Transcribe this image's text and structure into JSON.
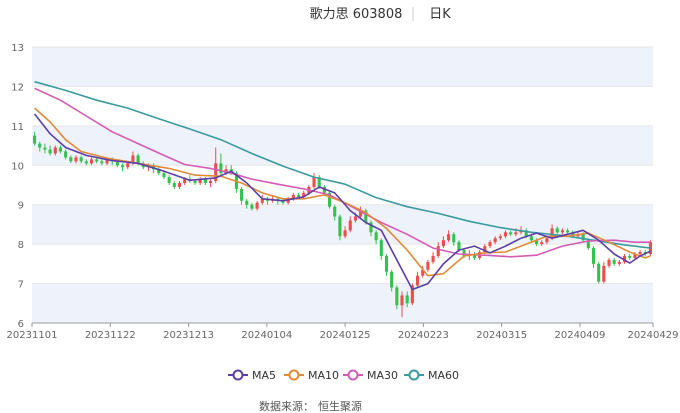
{
  "header": {
    "stock_name_code": "歌力思 603808",
    "period": "日K"
  },
  "source": {
    "label": "数据来源：",
    "provider": "恒生聚源"
  },
  "colors": {
    "up": "#ee4d4d",
    "down": "#34c24c",
    "band": "#eef2fb",
    "grid": "#e6e6e6",
    "ma5": "#5b3fa6",
    "ma10": "#e08a3a",
    "ma30": "#d45bb5",
    "ma60": "#3b9aa0"
  },
  "chart_data": {
    "type": "candlestick",
    "ylim": [
      6,
      13
    ],
    "yticks": [
      6,
      7,
      8,
      9,
      10,
      11,
      12,
      13
    ],
    "x_tick_labels": [
      "20231101",
      "20231122",
      "20231213",
      "20240104",
      "20240125",
      "20240223",
      "20240315",
      "20240409",
      "20240429"
    ],
    "x_tick_index": [
      0,
      15,
      30,
      45,
      60,
      75,
      90,
      105,
      119
    ],
    "n_days": 120,
    "legend": [
      "MA5",
      "MA10",
      "MA30",
      "MA60"
    ],
    "candles": [
      [
        10.75,
        10.55,
        10.85,
        10.5
      ],
      [
        10.55,
        10.45,
        10.6,
        10.35
      ],
      [
        10.45,
        10.4,
        10.55,
        10.3
      ],
      [
        10.4,
        10.3,
        10.5,
        10.25
      ],
      [
        10.3,
        10.45,
        10.5,
        10.25
      ],
      [
        10.45,
        10.35,
        10.5,
        10.3
      ],
      [
        10.35,
        10.2,
        10.4,
        10.15
      ],
      [
        10.2,
        10.1,
        10.25,
        10.05
      ],
      [
        10.1,
        10.2,
        10.25,
        10.05
      ],
      [
        10.2,
        10.1,
        10.25,
        10.05
      ],
      [
        10.1,
        10.05,
        10.15,
        10.0
      ],
      [
        10.05,
        10.15,
        10.2,
        10.0
      ],
      [
        10.15,
        10.1,
        10.2,
        10.05
      ],
      [
        10.1,
        10.05,
        10.15,
        10.0
      ],
      [
        10.05,
        10.15,
        10.2,
        10.0
      ],
      [
        10.15,
        10.1,
        10.2,
        10.0
      ],
      [
        10.1,
        10.0,
        10.15,
        9.95
      ],
      [
        10.0,
        9.95,
        10.05,
        9.85
      ],
      [
        9.95,
        10.05,
        10.1,
        9.9
      ],
      [
        10.05,
        10.25,
        10.35,
        10.0
      ],
      [
        10.25,
        10.05,
        10.3,
        10.0
      ],
      [
        10.05,
        9.95,
        10.1,
        9.9
      ],
      [
        9.95,
        10.0,
        10.05,
        9.85
      ],
      [
        10.0,
        9.9,
        10.05,
        9.8
      ],
      [
        9.9,
        9.8,
        9.95,
        9.75
      ],
      [
        9.8,
        9.7,
        9.85,
        9.65
      ],
      [
        9.7,
        9.55,
        9.75,
        9.5
      ],
      [
        9.55,
        9.45,
        9.6,
        9.4
      ],
      [
        9.45,
        9.55,
        9.6,
        9.4
      ],
      [
        9.55,
        9.65,
        9.7,
        9.5
      ],
      [
        9.65,
        9.6,
        9.75,
        9.55
      ],
      [
        9.6,
        9.55,
        9.65,
        9.5
      ],
      [
        9.55,
        9.65,
        9.7,
        9.5
      ],
      [
        9.65,
        9.55,
        9.7,
        9.5
      ],
      [
        9.55,
        9.6,
        9.65,
        9.45
      ],
      [
        9.6,
        10.05,
        10.45,
        9.55
      ],
      [
        10.05,
        9.8,
        10.3,
        9.7
      ],
      [
        9.8,
        9.9,
        10.0,
        9.75
      ],
      [
        9.9,
        9.8,
        10.0,
        9.75
      ],
      [
        9.8,
        9.4,
        9.85,
        9.3
      ],
      [
        9.4,
        9.1,
        9.45,
        9.0
      ],
      [
        9.1,
        9.0,
        9.15,
        8.9
      ],
      [
        9.0,
        8.9,
        9.05,
        8.85
      ],
      [
        8.9,
        9.05,
        9.1,
        8.85
      ],
      [
        9.05,
        9.15,
        9.25,
        9.0
      ],
      [
        9.15,
        9.1,
        9.2,
        9.0
      ],
      [
        9.1,
        9.15,
        9.25,
        9.05
      ],
      [
        9.15,
        9.1,
        9.2,
        9.0
      ],
      [
        9.1,
        9.05,
        9.15,
        9.0
      ],
      [
        9.05,
        9.15,
        9.2,
        9.0
      ],
      [
        9.15,
        9.25,
        9.3,
        9.1
      ],
      [
        9.25,
        9.2,
        9.3,
        9.15
      ],
      [
        9.2,
        9.3,
        9.35,
        9.15
      ],
      [
        9.3,
        9.45,
        9.5,
        9.25
      ],
      [
        9.45,
        9.7,
        9.8,
        9.4
      ],
      [
        9.7,
        9.45,
        9.75,
        9.4
      ],
      [
        9.45,
        9.3,
        9.5,
        9.25
      ],
      [
        9.3,
        8.95,
        9.35,
        8.9
      ],
      [
        8.95,
        8.7,
        9.0,
        8.6
      ],
      [
        8.7,
        8.2,
        8.75,
        8.1
      ],
      [
        8.2,
        8.35,
        8.45,
        8.15
      ],
      [
        8.35,
        8.6,
        8.7,
        8.3
      ],
      [
        8.6,
        8.7,
        8.8,
        8.55
      ],
      [
        8.7,
        8.85,
        8.95,
        8.65
      ],
      [
        8.85,
        8.55,
        8.9,
        8.5
      ],
      [
        8.55,
        8.3,
        8.6,
        8.2
      ],
      [
        8.3,
        8.1,
        8.35,
        8.0
      ],
      [
        8.1,
        7.7,
        8.15,
        7.6
      ],
      [
        7.7,
        7.3,
        7.75,
        7.2
      ],
      [
        7.3,
        6.9,
        7.35,
        6.8
      ],
      [
        6.9,
        6.45,
        6.95,
        6.35
      ],
      [
        6.45,
        6.7,
        6.8,
        6.15
      ],
      [
        6.7,
        6.5,
        6.8,
        6.4
      ],
      [
        6.5,
        6.95,
        7.0,
        6.45
      ],
      [
        6.95,
        7.2,
        7.3,
        6.9
      ],
      [
        7.2,
        7.35,
        7.45,
        7.15
      ],
      [
        7.35,
        7.55,
        7.6,
        7.3
      ],
      [
        7.55,
        7.7,
        7.8,
        7.5
      ],
      [
        7.7,
        7.95,
        8.05,
        7.65
      ],
      [
        7.95,
        8.1,
        8.2,
        7.9
      ],
      [
        8.1,
        8.25,
        8.35,
        8.05
      ],
      [
        8.25,
        8.05,
        8.3,
        7.95
      ],
      [
        8.05,
        7.85,
        8.1,
        7.8
      ],
      [
        7.85,
        7.7,
        7.9,
        7.65
      ],
      [
        7.7,
        7.75,
        7.85,
        7.6
      ],
      [
        7.75,
        7.65,
        7.8,
        7.6
      ],
      [
        7.65,
        7.8,
        7.85,
        7.6
      ],
      [
        7.8,
        7.95,
        8.0,
        7.75
      ],
      [
        7.95,
        8.05,
        8.1,
        7.9
      ],
      [
        8.05,
        8.15,
        8.2,
        8.0
      ],
      [
        8.15,
        8.2,
        8.25,
        8.1
      ],
      [
        8.2,
        8.3,
        8.35,
        8.15
      ],
      [
        8.3,
        8.25,
        8.35,
        8.2
      ],
      [
        8.25,
        8.3,
        8.4,
        8.2
      ],
      [
        8.3,
        8.35,
        8.45,
        8.25
      ],
      [
        8.35,
        8.2,
        8.4,
        8.15
      ],
      [
        8.2,
        8.1,
        8.25,
        8.05
      ],
      [
        8.1,
        8.0,
        8.15,
        7.95
      ],
      [
        8.0,
        8.05,
        8.1,
        7.95
      ],
      [
        8.05,
        8.15,
        8.2,
        8.0
      ],
      [
        8.15,
        8.4,
        8.5,
        8.1
      ],
      [
        8.4,
        8.3,
        8.45,
        8.25
      ],
      [
        8.3,
        8.35,
        8.4,
        8.25
      ],
      [
        8.35,
        8.3,
        8.4,
        8.25
      ],
      [
        8.3,
        8.2,
        8.35,
        8.15
      ],
      [
        8.2,
        8.25,
        8.3,
        8.15
      ],
      [
        8.25,
        8.1,
        8.3,
        8.05
      ],
      [
        8.1,
        7.9,
        8.15,
        7.85
      ],
      [
        7.9,
        7.5,
        7.95,
        7.4
      ],
      [
        7.5,
        7.05,
        7.55,
        7.0
      ],
      [
        7.05,
        7.45,
        7.55,
        7.0
      ],
      [
        7.45,
        7.6,
        7.65,
        7.4
      ],
      [
        7.6,
        7.5,
        7.65,
        7.45
      ],
      [
        7.5,
        7.55,
        7.6,
        7.45
      ],
      [
        7.55,
        7.7,
        7.75,
        7.5
      ],
      [
        7.7,
        7.65,
        7.75,
        7.6
      ],
      [
        7.65,
        7.75,
        7.8,
        7.6
      ],
      [
        7.75,
        7.8,
        7.85,
        7.7
      ],
      [
        7.8,
        7.75,
        7.85,
        7.7
      ],
      [
        7.75,
        8.05,
        8.1,
        7.7
      ]
    ],
    "ma5": [
      [
        0,
        11.3
      ],
      [
        3,
        10.8
      ],
      [
        6,
        10.45
      ],
      [
        10,
        10.25
      ],
      [
        15,
        10.12
      ],
      [
        20,
        10.05
      ],
      [
        25,
        9.85
      ],
      [
        30,
        9.62
      ],
      [
        35,
        9.68
      ],
      [
        38,
        9.85
      ],
      [
        41,
        9.55
      ],
      [
        44,
        9.15
      ],
      [
        48,
        9.1
      ],
      [
        52,
        9.2
      ],
      [
        55,
        9.45
      ],
      [
        58,
        9.3
      ],
      [
        61,
        8.85
      ],
      [
        64,
        8.55
      ],
      [
        67,
        8.35
      ],
      [
        70,
        7.6
      ],
      [
        73,
        6.85
      ],
      [
        76,
        7.0
      ],
      [
        79,
        7.5
      ],
      [
        82,
        7.85
      ],
      [
        85,
        7.95
      ],
      [
        88,
        7.78
      ],
      [
        91,
        7.95
      ],
      [
        94,
        8.15
      ],
      [
        97,
        8.28
      ],
      [
        100,
        8.15
      ],
      [
        103,
        8.25
      ],
      [
        106,
        8.35
      ],
      [
        109,
        8.1
      ],
      [
        112,
        7.75
      ],
      [
        115,
        7.52
      ],
      [
        117,
        7.7
      ],
      [
        119,
        7.82
      ]
    ],
    "ma10": [
      [
        0,
        11.45
      ],
      [
        3,
        11.1
      ],
      [
        6,
        10.65
      ],
      [
        9,
        10.35
      ],
      [
        14,
        10.18
      ],
      [
        20,
        10.05
      ],
      [
        26,
        9.92
      ],
      [
        31,
        9.75
      ],
      [
        36,
        9.72
      ],
      [
        40,
        9.55
      ],
      [
        44,
        9.3
      ],
      [
        48,
        9.15
      ],
      [
        52,
        9.15
      ],
      [
        56,
        9.25
      ],
      [
        60,
        9.05
      ],
      [
        64,
        8.8
      ],
      [
        68,
        8.4
      ],
      [
        72,
        7.85
      ],
      [
        76,
        7.2
      ],
      [
        79,
        7.25
      ],
      [
        83,
        7.7
      ],
      [
        87,
        7.78
      ],
      [
        91,
        7.8
      ],
      [
        95,
        8.0
      ],
      [
        99,
        8.2
      ],
      [
        103,
        8.2
      ],
      [
        107,
        8.28
      ],
      [
        111,
        8.05
      ],
      [
        115,
        7.8
      ],
      [
        118,
        7.65
      ],
      [
        119,
        7.7
      ]
    ],
    "ma30": [
      [
        0,
        11.95
      ],
      [
        5,
        11.65
      ],
      [
        10,
        11.25
      ],
      [
        15,
        10.85
      ],
      [
        20,
        10.55
      ],
      [
        25,
        10.25
      ],
      [
        29,
        10.02
      ],
      [
        34,
        9.92
      ],
      [
        38,
        9.8
      ],
      [
        42,
        9.65
      ],
      [
        47,
        9.52
      ],
      [
        52,
        9.4
      ],
      [
        57,
        9.25
      ],
      [
        62,
        8.9
      ],
      [
        67,
        8.55
      ],
      [
        72,
        8.25
      ],
      [
        77,
        7.9
      ],
      [
        82,
        7.75
      ],
      [
        87,
        7.72
      ],
      [
        92,
        7.68
      ],
      [
        97,
        7.72
      ],
      [
        102,
        7.95
      ],
      [
        107,
        8.08
      ],
      [
        112,
        8.1
      ],
      [
        116,
        8.05
      ],
      [
        119,
        8.05
      ]
    ],
    "ma60": [
      [
        0,
        12.12
      ],
      [
        6,
        11.9
      ],
      [
        12,
        11.65
      ],
      [
        18,
        11.45
      ],
      [
        24,
        11.18
      ],
      [
        30,
        10.92
      ],
      [
        36,
        10.65
      ],
      [
        42,
        10.3
      ],
      [
        48,
        9.98
      ],
      [
        54,
        9.7
      ],
      [
        60,
        9.52
      ],
      [
        66,
        9.18
      ],
      [
        72,
        8.95
      ],
      [
        78,
        8.78
      ],
      [
        84,
        8.58
      ],
      [
        90,
        8.42
      ],
      [
        96,
        8.3
      ],
      [
        102,
        8.22
      ],
      [
        108,
        8.1
      ],
      [
        114,
        7.98
      ],
      [
        119,
        7.9
      ]
    ]
  }
}
